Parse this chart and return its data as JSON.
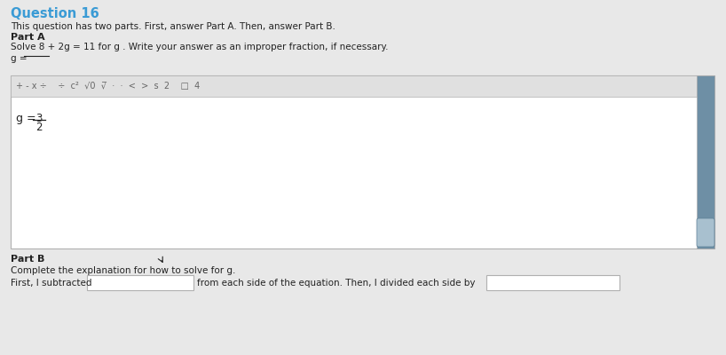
{
  "title": "Question 16",
  "title_color": "#3a9bd5",
  "bg_color": "#e8e8e8",
  "white": "#ffffff",
  "light_gray": "#e0e0e0",
  "medium_gray": "#b0b0b0",
  "dark_gray": "#666666",
  "steel_blue": "#6e8fa5",
  "text_color": "#222222",
  "line1": "This question has two parts. First, answer Part A. Then, answer Part B.",
  "partA_label": "Part A",
  "partA_instruction": "Solve 8 + 2g = 11 for g . Write your answer as an improper fraction, if necessary.",
  "g_eq": "g =",
  "toolbar_symbols": "+ - x ÷    ÷  c²  √0  √̅̅  ·  ·  <  >  s  2    □  4",
  "partB_label": "Part B",
  "partB_instruction": "Complete the explanation for how to solve for g.",
  "partB_text1": "First, I subtracted",
  "partB_text2": "from each side of the equation. Then, I divided each side by",
  "scrollbar_color": "#5c7f96",
  "scroll_nub_color": "#a8c0cf"
}
